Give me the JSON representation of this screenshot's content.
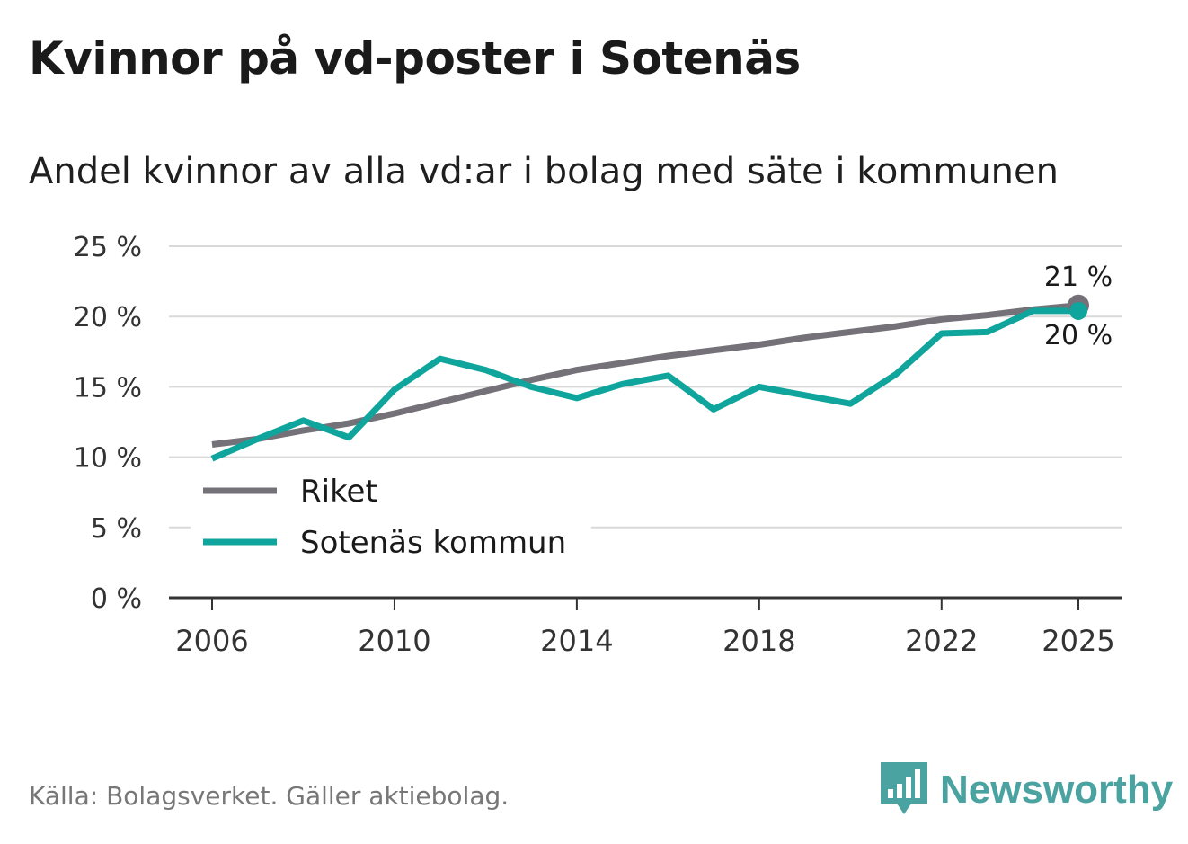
{
  "chart_data": {
    "type": "line",
    "title": "Kvinnor på vd-poster i Sotenäs",
    "subtitle": "Andel kvinnor av alla vd:ar i bolag med säte i kommunen",
    "xlabel": "",
    "ylabel": "",
    "x": [
      2006,
      2007,
      2008,
      2009,
      2010,
      2011,
      2012,
      2013,
      2014,
      2015,
      2016,
      2017,
      2018,
      2019,
      2020,
      2021,
      2022,
      2023,
      2024,
      2025
    ],
    "xlim": [
      2005,
      2026
    ],
    "ylim": [
      0,
      25
    ],
    "x_ticks": [
      "2006",
      "2010",
      "2014",
      "2018",
      "2022",
      "2025"
    ],
    "x_tick_values": [
      2006,
      2010,
      2014,
      2018,
      2022,
      2025
    ],
    "y_ticks": [
      "0 %",
      "5 %",
      "10 %",
      "15 %",
      "20 %",
      "25 %"
    ],
    "y_tick_values": [
      0,
      5,
      10,
      15,
      20,
      25
    ],
    "grid": true,
    "legend_placement": "bottom-left",
    "series": [
      {
        "name": "Riket",
        "color": "#747278",
        "values": [
          10.9,
          11.3,
          11.9,
          12.4,
          13.1,
          13.9,
          14.7,
          15.5,
          16.2,
          16.7,
          17.2,
          17.6,
          18.0,
          18.5,
          18.9,
          19.3,
          19.8,
          20.1,
          20.5,
          20.8
        ],
        "end_label": "21 %"
      },
      {
        "name": "Sotenäs kommun",
        "color": "#0fa59c",
        "values": [
          9.9,
          11.3,
          12.6,
          11.4,
          14.8,
          17.0,
          16.2,
          15.0,
          14.2,
          15.2,
          15.8,
          13.4,
          15.0,
          14.4,
          13.8,
          15.9,
          18.8,
          18.9,
          20.4,
          20.4
        ],
        "end_label": "20 %"
      }
    ]
  },
  "footer": {
    "source": "Källa: Bolagsverket. Gäller aktiebolag.",
    "brand": "Newsworthy",
    "brand_color": "#4aa3a0",
    "brand_icon": "bar-chart-speech-bubble-icon"
  }
}
